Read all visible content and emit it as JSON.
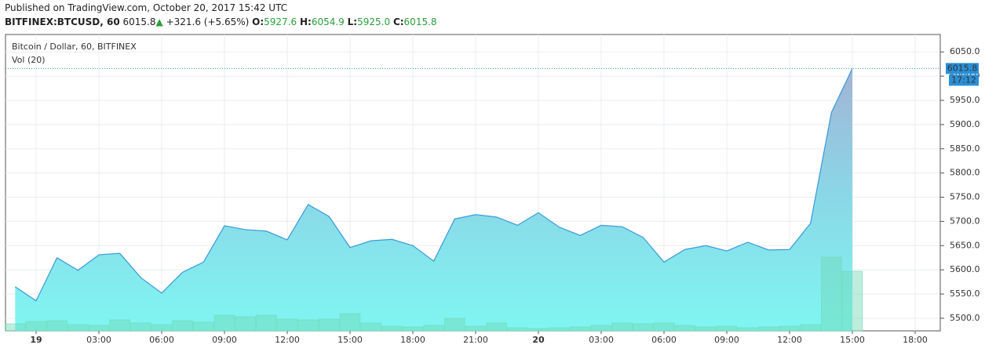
{
  "header": {
    "published": "Published on TradingView.com, October 20, 2017 15:42 UTC",
    "symbol": "BITFINEX:BTCUSD, 60",
    "last": "6015.8",
    "arrow": "▲",
    "change": "+321.6 (+5.65%)",
    "ohlc": [
      {
        "label": "O:",
        "value": "5927.6"
      },
      {
        "label": "H:",
        "value": "6054.9"
      },
      {
        "label": "L:",
        "value": "5925.0"
      },
      {
        "label": "C:",
        "value": "6015.8"
      }
    ]
  },
  "chart_data": {
    "type": "area",
    "legend": "Bitcoin / Dollar, 60, BITFINEX",
    "volume_legend": "Vol (20)",
    "watermark": "BTCUSD chart by TradingView",
    "countdown": "17:12",
    "x": [
      -1,
      0,
      1,
      2,
      3,
      4,
      5,
      6,
      7,
      8,
      9,
      10,
      11,
      12,
      13,
      14,
      15,
      16,
      17,
      18,
      19,
      20,
      21,
      22,
      23,
      24,
      25,
      26,
      27,
      28,
      29,
      30,
      31,
      32,
      33,
      34,
      35,
      36,
      37,
      38,
      39
    ],
    "series": [
      {
        "name": "Bitcoin / Dollar",
        "color": "#3a9ad9",
        "values": [
          5565,
          5536,
          5625,
          5599,
          5631,
          5634,
          5584,
          5552,
          5595,
          5616,
          5691,
          5683,
          5680,
          5662,
          5735,
          5710,
          5646,
          5660,
          5663,
          5650,
          5618,
          5705,
          5714,
          5709,
          5692,
          5718,
          5688,
          5671,
          5692,
          5689,
          5667,
          5616,
          5642,
          5650,
          5639,
          5657,
          5641,
          5642,
          5696,
          5925,
          6015.8
        ]
      },
      {
        "name": "Vol (20)",
        "color": "#6fd8b4",
        "axis": "y2",
        "values": [
          9,
          12,
          13,
          8,
          7,
          14,
          10,
          8,
          13,
          11,
          20,
          18,
          20,
          15,
          14,
          15,
          22,
          10,
          6,
          5,
          7,
          16,
          6,
          10,
          4,
          3,
          4,
          5,
          7,
          10,
          9,
          10,
          7,
          5,
          6,
          4,
          5,
          6,
          8,
          94,
          76
        ]
      }
    ],
    "xlim": [
      -1.4625,
      43.2
    ],
    "xticks": [
      {
        "value": 0,
        "label": "19"
      },
      {
        "value": 3,
        "label": "03:00"
      },
      {
        "value": 6,
        "label": "06:00"
      },
      {
        "value": 9,
        "label": "09:00"
      },
      {
        "value": 12,
        "label": "12:00"
      },
      {
        "value": 15,
        "label": "15:00"
      },
      {
        "value": 18,
        "label": "18:00"
      },
      {
        "value": 21,
        "label": "21:00"
      },
      {
        "value": 24,
        "label": "20"
      },
      {
        "value": 27,
        "label": "03:00"
      },
      {
        "value": 30,
        "label": "06:00"
      },
      {
        "value": 33,
        "label": "09:00"
      },
      {
        "value": 36,
        "label": "12:00"
      },
      {
        "value": 39,
        "label": "15:00"
      },
      {
        "value": 42,
        "label": "18:00"
      }
    ],
    "ylim": [
      5474,
      6086
    ],
    "yticks": [
      {
        "value": 5500,
        "label": "5500.0"
      },
      {
        "value": 5550,
        "label": "5550.0"
      },
      {
        "value": 5600,
        "label": "5600.0"
      },
      {
        "value": 5650,
        "label": "5650.0"
      },
      {
        "value": 5700,
        "label": "5700.0"
      },
      {
        "value": 5750,
        "label": "5750.0"
      },
      {
        "value": 5800,
        "label": "5800.0"
      },
      {
        "value": 5850,
        "label": "5850.0"
      },
      {
        "value": 5900,
        "label": "5900.0"
      },
      {
        "value": 5950,
        "label": "5950.0"
      },
      {
        "value": 6000,
        "label": "6000.0"
      },
      {
        "value": 6050,
        "label": "6050.0"
      }
    ],
    "y2lim": [
      0,
      378
    ],
    "grid": true
  }
}
